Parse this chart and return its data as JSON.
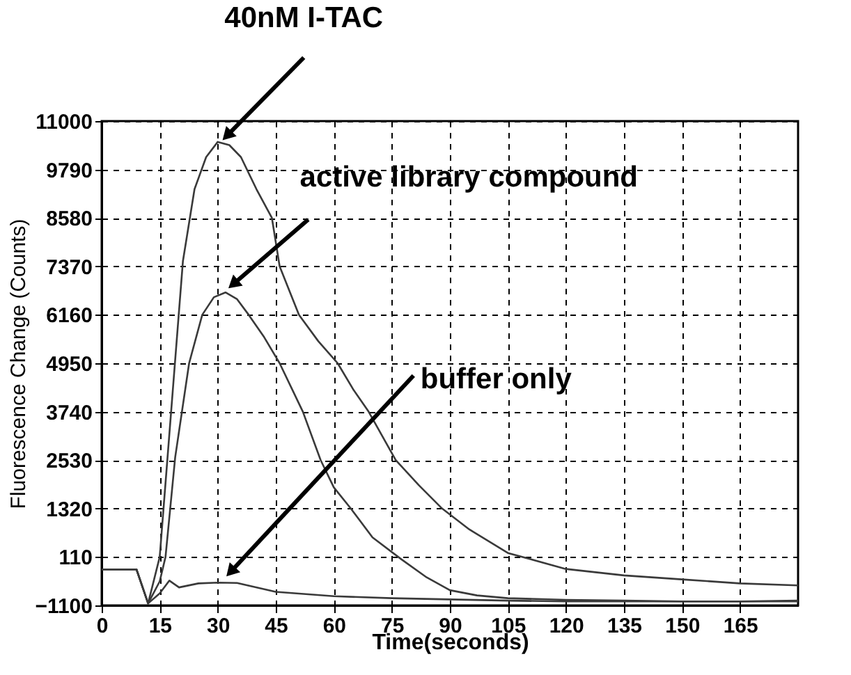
{
  "chart_data": {
    "type": "line",
    "xlabel": "Time(seconds)",
    "ylabel": "Fluorescence Change (Counts)",
    "xlim": [
      0,
      180
    ],
    "xticks": [
      0,
      15,
      30,
      45,
      60,
      75,
      90,
      105,
      120,
      135,
      150,
      165
    ],
    "ylim": [
      -1100,
      11000
    ],
    "yticks": [
      -1100,
      110,
      1320,
      2530,
      3740,
      4950,
      6160,
      7370,
      8580,
      9790,
      11000
    ],
    "grid": true,
    "legend": false,
    "line_style": "solid",
    "marker": "none",
    "series": [
      {
        "color": "#3a3a3a",
        "x": [
          0,
          9,
          12,
          15,
          18,
          21,
          24,
          27,
          30,
          33,
          36,
          40,
          44,
          46,
          51,
          56,
          61,
          65,
          69,
          76,
          82,
          88,
          95,
          105,
          120,
          135,
          150,
          165,
          180
        ],
        "values": [
          -200,
          -200,
          -1050,
          110,
          3800,
          7500,
          9300,
          10100,
          10480,
          10400,
          10100,
          9300,
          8580,
          7370,
          6160,
          5500,
          4950,
          4300,
          3740,
          2530,
          1900,
          1320,
          800,
          210,
          -190,
          -350,
          -450,
          -550,
          -600
        ]
      },
      {
        "color": "#3a3a3a",
        "x": [
          0,
          9,
          12,
          15,
          16.5,
          19,
          22.6,
          26,
          29,
          32,
          35,
          38,
          42,
          46,
          52,
          56.6,
          60,
          64.4,
          70,
          77.5,
          84,
          90,
          97,
          105,
          120,
          135,
          150,
          165,
          180
        ],
        "values": [
          -200,
          -200,
          -1050,
          -500,
          110,
          2600,
          4950,
          6160,
          6600,
          6720,
          6550,
          6160,
          5600,
          4950,
          3740,
          2530,
          1850,
          1320,
          600,
          50,
          -400,
          -720,
          -850,
          -920,
          -960,
          -980,
          -1000,
          -1000,
          -1000
        ]
      },
      {
        "color": "#3a3a3a",
        "x": [
          0,
          9,
          12,
          15,
          17.5,
          20,
          25,
          30,
          35,
          45,
          60,
          75,
          90,
          105,
          120,
          135,
          150,
          165,
          180
        ],
        "values": [
          -200,
          -200,
          -1050,
          -800,
          -480,
          -650,
          -550,
          -530,
          -540,
          -760,
          -870,
          -920,
          -950,
          -980,
          -1000,
          -1000,
          -1000,
          -1000,
          -980
        ]
      }
    ],
    "annotations": [
      {
        "text": "40nM I-TAC",
        "x": 31,
        "y": 10500
      },
      {
        "text": "active library compound",
        "x": 32.5,
        "y": 6800
      },
      {
        "text": "buffer only",
        "x": 32,
        "y": -400
      }
    ]
  }
}
